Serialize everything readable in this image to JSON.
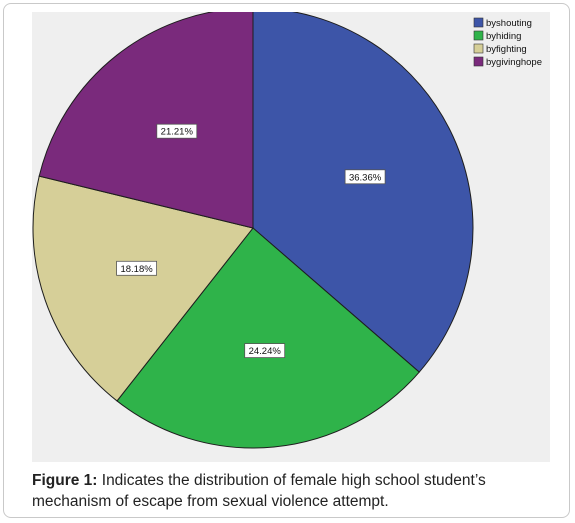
{
  "chart_data": {
    "type": "pie",
    "categories": [
      "byshouting",
      "byhiding",
      "byfighting",
      "bygivinghope"
    ],
    "values": [
      36.36,
      24.24,
      18.18,
      21.21
    ],
    "data_labels": [
      "36.36%",
      "24.24%",
      "18.18%",
      "21.21%"
    ],
    "colors": [
      "#3d55a8",
      "#2fb34a",
      "#d6cf98",
      "#7a2a7c"
    ],
    "legend_position": "top-right",
    "start_angle": "12 o'clock",
    "direction": "clockwise"
  },
  "caption": {
    "lead": "Figure 1:",
    "text": " Indicates the distribution of female high school student’s mechanism of escape from sexual violence attempt."
  }
}
